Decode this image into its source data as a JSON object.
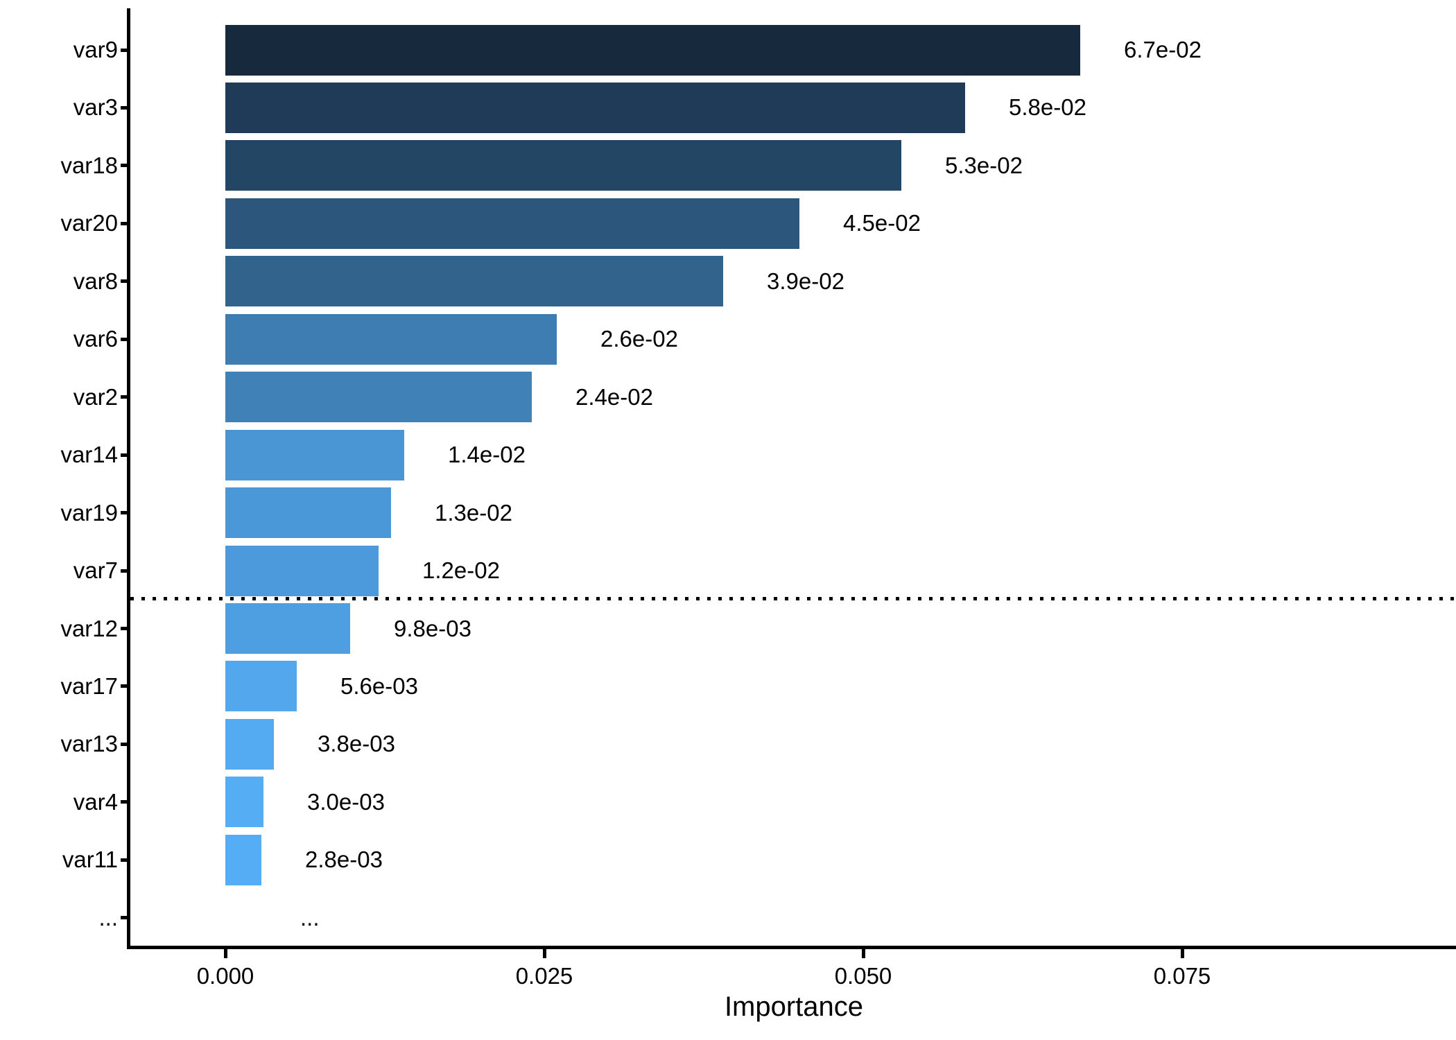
{
  "chart_data": {
    "type": "bar",
    "orientation": "horizontal",
    "title": "",
    "xlabel": "Importance",
    "ylabel": "",
    "categories": [
      "var9",
      "var3",
      "var18",
      "var20",
      "var8",
      "var6",
      "var2",
      "var14",
      "var19",
      "var7",
      "var12",
      "var17",
      "var13",
      "var4",
      "var11",
      "..."
    ],
    "values": [
      0.067,
      0.058,
      0.053,
      0.045,
      0.039,
      0.026,
      0.024,
      0.014,
      0.013,
      0.012,
      0.0098,
      0.0056,
      0.0038,
      0.003,
      0.0028,
      null
    ],
    "value_labels": [
      "6.7e-02",
      "5.8e-02",
      "5.3e-02",
      "4.5e-02",
      "3.9e-02",
      "2.6e-02",
      "2.4e-02",
      "1.4e-02",
      "1.3e-02",
      "1.2e-02",
      "9.8e-03",
      "5.6e-03",
      "3.8e-03",
      "3.0e-03",
      "2.8e-03",
      "..."
    ],
    "bar_colors": [
      "#16293D",
      "#1F3B57",
      "#244665",
      "#2C567C",
      "#31638D",
      "#3E7DB2",
      "#4081B8",
      "#4A96D5",
      "#4B98D8",
      "#4C9ADB",
      "#4E9FE1",
      "#52A7ED",
      "#54ABF2",
      "#55ADF4",
      "#55ADF5",
      null
    ],
    "color_scale": {
      "high_value_color": "#16293D",
      "low_value_color": "#55ADF5",
      "maps_to": "value"
    },
    "x_tick_labels": [
      "0.000",
      "0.025",
      "0.050",
      "0.075"
    ],
    "x_tick_values": [
      0.0,
      0.025,
      0.05,
      0.075
    ],
    "xlim": [
      0,
      0.0965
    ],
    "grid": "off",
    "legend": "none",
    "background": "#FFFFFF",
    "axis_color": "#000000",
    "text_color": "#000000",
    "threshold_line": {
      "style": "dotted",
      "color": "#000000",
      "after_category": "var7",
      "before_category": "var12"
    }
  }
}
